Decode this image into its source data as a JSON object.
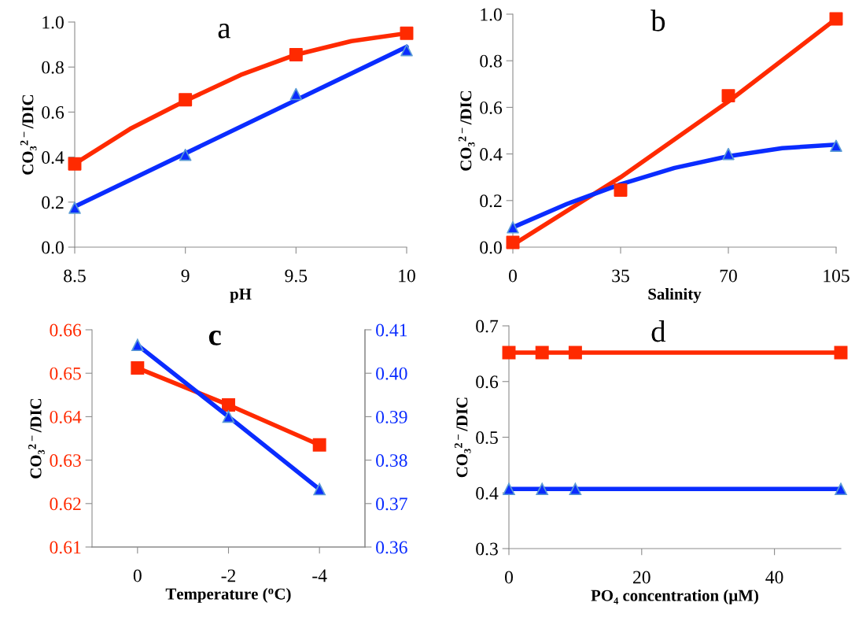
{
  "chart_data": [
    {
      "type": "line",
      "xlabel": "pH",
      "ylabel": "CO₃$^{2−}$/DIC",
      "annotations": [
        "a"
      ],
      "xlim": [
        8.5,
        10
      ],
      "xticks": [
        8.5,
        9,
        9.5,
        10
      ],
      "ylim": [
        0,
        1
      ],
      "yticks": [
        {
          "value": 0,
          "label": "0.0"
        },
        {
          "value": 0.2,
          "label": "0.2"
        },
        {
          "value": 0.4,
          "label": "0.4"
        },
        {
          "value": 0.6,
          "label": "0.6"
        },
        {
          "value": 0.8,
          "label": "0.8"
        },
        {
          "value": 1,
          "label": "1.0"
        }
      ],
      "grid": false,
      "series": [
        {
          "color": "#ff2a00",
          "marker": "none",
          "x": [
            8.5,
            8.75,
            9,
            9.25,
            9.5,
            9.75,
            10
          ],
          "values": [
            0.37,
            0.525,
            0.65,
            0.765,
            0.855,
            0.915,
            0.95
          ]
        },
        {
          "color": "#0a2cff",
          "marker": "none",
          "x": [
            8.5,
            10
          ],
          "values": [
            0.18,
            0.89
          ]
        },
        {
          "type": "scatter",
          "color": "#ff2a00",
          "marker": "square",
          "x": [
            8.5,
            9,
            9.5,
            10
          ],
          "values": [
            0.37,
            0.655,
            0.855,
            0.95
          ]
        },
        {
          "type": "scatter",
          "color": "#0a2cff",
          "marker": "triangle",
          "x": [
            8.5,
            9,
            9.5,
            10
          ],
          "values": [
            0.175,
            0.41,
            0.68,
            0.875
          ]
        }
      ]
    },
    {
      "type": "line",
      "xlabel": "Salinity",
      "ylabel": "CO₃$^{2−}$/DIC",
      "annotations": [
        "b"
      ],
      "xlim": [
        0,
        105
      ],
      "xticks": [
        0,
        35,
        70,
        105
      ],
      "ylim": [
        0,
        1
      ],
      "yticks": [
        {
          "value": 0,
          "label": "0.0"
        },
        {
          "value": 0.2,
          "label": "0.2"
        },
        {
          "value": 0.4,
          "label": "0.4"
        },
        {
          "value": 0.6,
          "label": "0.6"
        },
        {
          "value": 0.8,
          "label": "0.8"
        },
        {
          "value": 1,
          "label": "1.0"
        }
      ],
      "grid": false,
      "series": [
        {
          "color": "#ff2a00",
          "marker": "none",
          "x": [
            0,
            35,
            70,
            105
          ],
          "values": [
            0.01,
            0.3,
            0.625,
            0.98
          ]
        },
        {
          "color": "#0a2cff",
          "marker": "none",
          "x": [
            0,
            17.5,
            35,
            52.5,
            70,
            87.5,
            105
          ],
          "values": [
            0.085,
            0.185,
            0.27,
            0.34,
            0.39,
            0.425,
            0.44
          ]
        },
        {
          "type": "scatter",
          "color": "#ff2a00",
          "marker": "square",
          "x": [
            0,
            35,
            70,
            105
          ],
          "values": [
            0.02,
            0.245,
            0.65,
            0.98
          ]
        },
        {
          "type": "scatter",
          "color": "#0a2cff",
          "marker": "triangle",
          "x": [
            0,
            35,
            70,
            105
          ],
          "values": [
            0.085,
            null,
            0.4,
            0.435
          ]
        }
      ]
    },
    {
      "type": "line",
      "xlabel": "Temperature ($^{o}$C)",
      "ylabel": "CO₃$^{2−}$/DIC",
      "annotations": [
        "c"
      ],
      "xlim": [
        1,
        -5
      ],
      "xticks": [
        0,
        -2,
        -4
      ],
      "ylim": [
        0.61,
        0.66
      ],
      "yticks": [
        0.61,
        0.62,
        0.63,
        0.64,
        0.65,
        0.66
      ],
      "y2lim": [
        0.36,
        0.41
      ],
      "y2ticks": [
        0.36,
        0.37,
        0.38,
        0.39,
        {
          "value": 0.4,
          "label": "0.40"
        },
        0.41
      ],
      "grid": false,
      "series": [
        {
          "color": "#ff2a00",
          "marker": "square",
          "x": [
            0,
            -2,
            -4
          ],
          "values": [
            0.6512,
            0.6427,
            0.6335
          ]
        },
        {
          "color": "#0a2cff",
          "marker": "triangle",
          "axis": "y2",
          "x": [
            0,
            -2,
            -4
          ],
          "values": [
            0.4065,
            0.39,
            0.3733
          ]
        }
      ]
    },
    {
      "type": "line",
      "xlabel": "PO₄ concentration (µM)",
      "ylabel": "CO₃$^{2−}$/DIC",
      "annotations": [
        "d"
      ],
      "xlim": [
        0,
        50
      ],
      "xticks": [
        0,
        20,
        40
      ],
      "ylim": [
        0.3,
        0.7
      ],
      "yticks": [
        0.3,
        0.4,
        0.5,
        0.6,
        0.7
      ],
      "grid": false,
      "series": [
        {
          "color": "#ff2a00",
          "marker": "square",
          "x": [
            0,
            5,
            10,
            50
          ],
          "values": [
            0.652,
            0.652,
            0.652,
            0.652
          ]
        },
        {
          "color": "#0a2cff",
          "marker": "triangle",
          "x": [
            0,
            5,
            10,
            50
          ],
          "values": [
            0.407,
            0.407,
            0.407,
            0.407
          ]
        }
      ]
    }
  ]
}
